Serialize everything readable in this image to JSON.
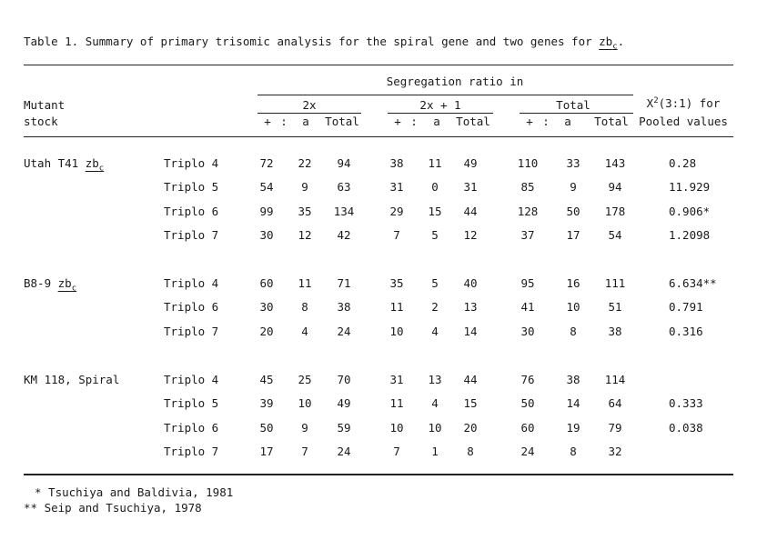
{
  "caption": {
    "prefix": "Table 1.  Summary of primary trisomic analysis for the spiral gene and two genes for ",
    "gene": "zb",
    "gene_sub": "c",
    "suffix": "."
  },
  "header": {
    "mutant_line1": "Mutant",
    "mutant_line2": "stock",
    "segregation": "Segregation ratio in",
    "group_2x": "2x",
    "group_2x1": "2x + 1",
    "group_total": "Total",
    "sub_plus": "+",
    "sub_sep": ":",
    "sub_a": "a",
    "sub_total": "Total",
    "chi_x": "X",
    "chi_sup": "2",
    "chi_rest": "(3:1) for",
    "pooled": "Pooled values"
  },
  "stocks": [
    {
      "name": "Utah T41 ",
      "gene": "zb",
      "gene_sub": "c",
      "rows": [
        {
          "triplo": "Triplo 4",
          "p2x": "72",
          "a2x": "22",
          "t2x": "94",
          "p21": "38",
          "a21": "11",
          "t21": "49",
          "pt": "110",
          "at": "33",
          "tt": "143",
          "chi": "0.28"
        },
        {
          "triplo": "Triplo 5",
          "p2x": "54",
          "a2x": "9",
          "t2x": "63",
          "p21": "31",
          "a21": "0",
          "t21": "31",
          "pt": "85",
          "at": "9",
          "tt": "94",
          "chi": "11.929"
        },
        {
          "triplo": "Triplo 6",
          "p2x": "99",
          "a2x": "35",
          "t2x": "134",
          "p21": "29",
          "a21": "15",
          "t21": "44",
          "pt": "128",
          "at": "50",
          "tt": "178",
          "chi": "0.906*"
        },
        {
          "triplo": "Triplo 7",
          "p2x": "30",
          "a2x": "12",
          "t2x": "42",
          "p21": "7",
          "a21": "5",
          "t21": "12",
          "pt": "37",
          "at": "17",
          "tt": "54",
          "chi": "1.2098"
        }
      ]
    },
    {
      "name": "B8-9 ",
      "gene": "zb",
      "gene_sub": "c",
      "rows": [
        {
          "triplo": "Triplo 4",
          "p2x": "60",
          "a2x": "11",
          "t2x": "71",
          "p21": "35",
          "a21": "5",
          "t21": "40",
          "pt": "95",
          "at": "16",
          "tt": "111",
          "chi": "6.634**"
        },
        {
          "triplo": "Triplo 6",
          "p2x": "30",
          "a2x": "8",
          "t2x": "38",
          "p21": "11",
          "a21": "2",
          "t21": "13",
          "pt": "41",
          "at": "10",
          "tt": "51",
          "chi": "0.791"
        },
        {
          "triplo": "Triplo 7",
          "p2x": "20",
          "a2x": "4",
          "t2x": "24",
          "p21": "10",
          "a21": "4",
          "t21": "14",
          "pt": "30",
          "at": "8",
          "tt": "38",
          "chi": "0.316"
        }
      ]
    },
    {
      "name": "KM 118, Spiral",
      "gene": "",
      "gene_sub": "",
      "rows": [
        {
          "triplo": "Triplo 4",
          "p2x": "45",
          "a2x": "25",
          "t2x": "70",
          "p21": "31",
          "a21": "13",
          "t21": "44",
          "pt": "76",
          "at": "38",
          "tt": "114",
          "chi": ""
        },
        {
          "triplo": "Triplo 5",
          "p2x": "39",
          "a2x": "10",
          "t2x": "49",
          "p21": "11",
          "a21": "4",
          "t21": "15",
          "pt": "50",
          "at": "14",
          "tt": "64",
          "chi": "0.333"
        },
        {
          "triplo": "Triplo 6",
          "p2x": "50",
          "a2x": "9",
          "t2x": "59",
          "p21": "10",
          "a21": "10",
          "t21": "20",
          "pt": "60",
          "at": "19",
          "tt": "79",
          "chi": "0.038"
        },
        {
          "triplo": "Triplo 7",
          "p2x": "17",
          "a2x": "7",
          "t2x": "24",
          "p21": "7",
          "a21": "1",
          "t21": "8",
          "pt": "24",
          "at": "8",
          "tt": "32",
          "chi": ""
        }
      ]
    }
  ],
  "footnotes": [
    "* Tsuchiya and Baldivia, 1981",
    "** Seip and Tsuchiya, 1978"
  ]
}
